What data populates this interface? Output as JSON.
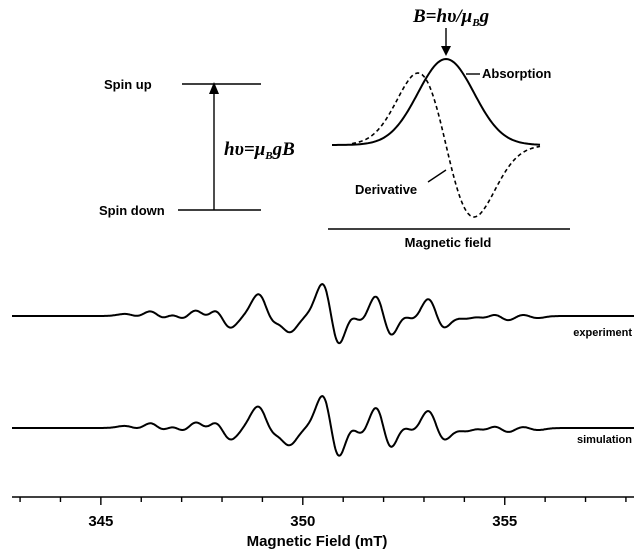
{
  "energy_levels": {
    "upper_label": "Spin up",
    "lower_label": "Spin down",
    "transition_formula": "hυ=μBgB"
  },
  "lineshape_inset": {
    "resonance_formula": "B=hυ/μBg",
    "absorption_label": "Absorption",
    "derivative_label": "Derivative",
    "x_axis_label": "Magnetic field"
  },
  "chart_data": {
    "type": "line",
    "xlabel": "Magnetic Field (mT)",
    "ylabel": "",
    "xlim": [
      342.8,
      358.2
    ],
    "x_ticks": [
      "345",
      "350",
      "355"
    ],
    "series": [
      {
        "name": "experiment"
      },
      {
        "name": "simulation"
      }
    ],
    "lines": [
      {
        "center": 350.7,
        "amp": 1.25,
        "width": 0.22
      },
      {
        "center": 349.1,
        "amp": 0.8,
        "width": 0.22
      },
      {
        "center": 349.5,
        "amp": 0.55,
        "width": 0.22
      },
      {
        "center": 352.0,
        "amp": 0.85,
        "width": 0.22
      },
      {
        "center": 353.3,
        "amp": 0.7,
        "width": 0.22
      },
      {
        "center": 348.0,
        "amp": 0.45,
        "width": 0.22
      },
      {
        "center": 347.5,
        "amp": 0.3,
        "width": 0.22
      },
      {
        "center": 346.4,
        "amp": 0.22,
        "width": 0.22
      },
      {
        "center": 346.9,
        "amp": 0.2,
        "width": 0.22
      },
      {
        "center": 345.8,
        "amp": 0.08,
        "width": 0.22
      },
      {
        "center": 351.3,
        "amp": 0.3,
        "width": 0.22
      },
      {
        "center": 352.6,
        "amp": 0.2,
        "width": 0.22
      },
      {
        "center": 353.7,
        "amp": 0.2,
        "width": 0.22
      },
      {
        "center": 354.0,
        "amp": 0.18,
        "width": 0.22
      },
      {
        "center": 354.4,
        "amp": 0.16,
        "width": 0.22
      },
      {
        "center": 354.9,
        "amp": 0.18,
        "width": 0.22
      },
      {
        "center": 355.6,
        "amp": 0.08,
        "width": 0.22
      }
    ]
  }
}
